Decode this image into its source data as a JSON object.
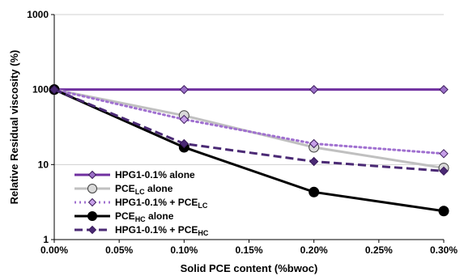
{
  "chart_data": {
    "type": "line",
    "title": "",
    "xlabel": "Solid PCE content (%bwoc)",
    "ylabel": "Relative Residual viscosity (%)",
    "x_tick_labels": [
      "0.00%",
      "0.05%",
      "0.10%",
      "0.15%",
      "0.20%",
      "0.25%",
      "0.30%"
    ],
    "x_ticks": [
      0,
      0.05,
      0.1,
      0.15,
      0.2,
      0.25,
      0.3
    ],
    "y_tick_labels": [
      "1",
      "10",
      "100",
      "1000"
    ],
    "y_ticks": [
      1,
      10,
      100,
      1000
    ],
    "xlim": [
      0,
      0.3
    ],
    "ylim": [
      1,
      1000
    ],
    "y_scale": "log",
    "grid": "horizontal",
    "legend_position": "bottom-left",
    "series": [
      {
        "name": "HPG1-0.1% alone",
        "legend_main": "HPG1-0.1% alone",
        "legend_sub": "",
        "legend_tail": "",
        "color": "#7030a0",
        "line_style": "solid",
        "marker": "diamond",
        "marker_fill": "#9b6fc7",
        "x": [
          0,
          0.1,
          0.2,
          0.3
        ],
        "y": [
          100,
          100,
          100,
          100
        ]
      },
      {
        "name": "PCE LC alone",
        "legend_main": "PCE",
        "legend_sub": "LC",
        "legend_tail": " alone",
        "color": "#c0c0c0",
        "line_style": "solid",
        "marker": "circle",
        "marker_fill": "#d9d9d9",
        "x": [
          0,
          0.1,
          0.2,
          0.3
        ],
        "y": [
          100,
          45,
          17,
          9
        ]
      },
      {
        "name": "HPG1-0.1% + PCE LC",
        "legend_main": "HPG1-0.1% + PCE",
        "legend_sub": "LC",
        "legend_tail": "",
        "color": "#a070d0",
        "line_style": "dotted",
        "marker": "diamond",
        "marker_fill": "#c7a0e8",
        "x": [
          0,
          0.1,
          0.2,
          0.3
        ],
        "y": [
          100,
          40,
          19,
          14
        ]
      },
      {
        "name": "PCE HC alone",
        "legend_main": "PCE",
        "legend_sub": "HC",
        "legend_tail": " alone",
        "color": "#000000",
        "line_style": "solid",
        "marker": "circle",
        "marker_fill": "#000000",
        "x": [
          0,
          0.1,
          0.2,
          0.3
        ],
        "y": [
          100,
          17,
          4.3,
          2.4
        ]
      },
      {
        "name": "HPG1-0.1% + PCE HC",
        "legend_main": "HPG1-0.1% + PCE",
        "legend_sub": "HC",
        "legend_tail": "",
        "color": "#4b2a75",
        "line_style": "dashed",
        "marker": "diamond",
        "marker_fill": "#4b2a75",
        "x": [
          0,
          0.1,
          0.2,
          0.3
        ],
        "y": [
          100,
          19,
          11,
          8.2
        ]
      }
    ]
  }
}
